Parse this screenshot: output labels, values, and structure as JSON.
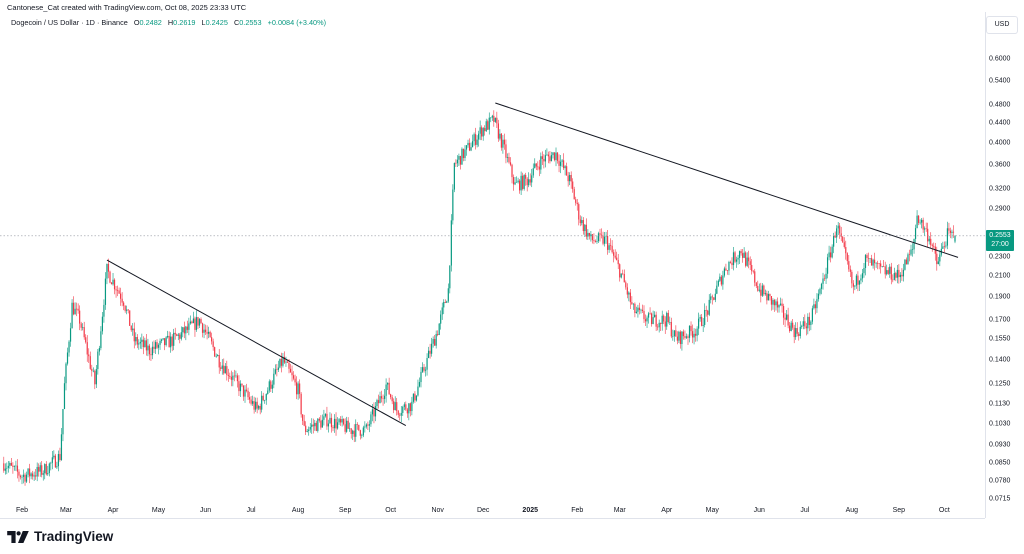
{
  "header": {
    "attribution": "Cantonese_Cat created with TradingView.com, Oct 08, 2025 23:33 UTC"
  },
  "legend": {
    "symbol": "Dogecoin / US Dollar · 1D · Binance",
    "open_label": "O",
    "open": "0.2482",
    "high_label": "H",
    "high": "0.2619",
    "low_label": "L",
    "low": "0.2425",
    "close_label": "C",
    "close": "0.2553",
    "change": "+0.0084 (+3.40%)"
  },
  "price_axis": {
    "currency": "USD",
    "last_price": "0.2553",
    "countdown": "27:00"
  },
  "branding": {
    "logo_text": "TradingView"
  },
  "colors": {
    "up": "#089981",
    "down": "#f23645",
    "trendline": "#131722",
    "price_line": "#9598a1"
  },
  "chart_data": {
    "type": "candlestick",
    "title": "Dogecoin / US Dollar · 1D · Binance",
    "y_scale": "log",
    "ylim": [
      0.068,
      0.66
    ],
    "xlim": [
      "2024-01-19",
      "2025-10-28"
    ],
    "grid": false,
    "y_ticks": [
      "0.6000",
      "0.5400",
      "0.4800",
      "0.4400",
      "0.4000",
      "0.3600",
      "0.3200",
      "0.2900",
      "0.2300",
      "0.2100",
      "0.1900",
      "0.1700",
      "0.1550",
      "0.1400",
      "0.1250",
      "0.1130",
      "0.1030",
      "0.0930",
      "0.0850",
      "0.0780",
      "0.0715"
    ],
    "x_ticks": [
      {
        "label": "Feb",
        "date": "2024-02-01"
      },
      {
        "label": "Mar",
        "date": "2024-03-01"
      },
      {
        "label": "Apr",
        "date": "2024-04-01"
      },
      {
        "label": "May",
        "date": "2024-05-01"
      },
      {
        "label": "Jun",
        "date": "2024-06-01"
      },
      {
        "label": "Jul",
        "date": "2024-07-01"
      },
      {
        "label": "Aug",
        "date": "2024-08-01"
      },
      {
        "label": "Sep",
        "date": "2024-09-01"
      },
      {
        "label": "Oct",
        "date": "2024-10-01"
      },
      {
        "label": "Nov",
        "date": "2024-11-01"
      },
      {
        "label": "Dec",
        "date": "2024-12-01"
      },
      {
        "label": "2025",
        "date": "2025-01-01",
        "year": true
      },
      {
        "label": "Feb",
        "date": "2025-02-01"
      },
      {
        "label": "Mar",
        "date": "2025-03-01"
      },
      {
        "label": "Apr",
        "date": "2025-04-01"
      },
      {
        "label": "May",
        "date": "2025-05-01"
      },
      {
        "label": "Jun",
        "date": "2025-06-01"
      },
      {
        "label": "Jul",
        "date": "2025-07-01"
      },
      {
        "label": "Aug",
        "date": "2025-08-01"
      },
      {
        "label": "Sep",
        "date": "2025-09-01"
      },
      {
        "label": "Oct",
        "date": "2025-10-01"
      }
    ],
    "approx_closes": [
      [
        "2024-01-20",
        0.085
      ],
      [
        "2024-02-01",
        0.08
      ],
      [
        "2024-02-15",
        0.082
      ],
      [
        "2024-02-26",
        0.088
      ],
      [
        "2024-02-29",
        0.124
      ],
      [
        "2024-03-05",
        0.182
      ],
      [
        "2024-03-10",
        0.17
      ],
      [
        "2024-03-20",
        0.125
      ],
      [
        "2024-03-28",
        0.216
      ],
      [
        "2024-04-08",
        0.187
      ],
      [
        "2024-04-15",
        0.154
      ],
      [
        "2024-04-25",
        0.147
      ],
      [
        "2024-05-10",
        0.154
      ],
      [
        "2024-05-20",
        0.162
      ],
      [
        "2024-05-28",
        0.17
      ],
      [
        "2024-06-10",
        0.14
      ],
      [
        "2024-06-20",
        0.127
      ],
      [
        "2024-07-05",
        0.11
      ],
      [
        "2024-07-15",
        0.127
      ],
      [
        "2024-07-22",
        0.14
      ],
      [
        "2024-08-01",
        0.121
      ],
      [
        "2024-08-05",
        0.1
      ],
      [
        "2024-08-20",
        0.105
      ],
      [
        "2024-09-05",
        0.1
      ],
      [
        "2024-09-15",
        0.1
      ],
      [
        "2024-09-28",
        0.124
      ],
      [
        "2024-10-05",
        0.11
      ],
      [
        "2024-10-15",
        0.113
      ],
      [
        "2024-10-25",
        0.14
      ],
      [
        "2024-11-01",
        0.162
      ],
      [
        "2024-11-08",
        0.197
      ],
      [
        "2024-11-12",
        0.36
      ],
      [
        "2024-11-20",
        0.386
      ],
      [
        "2024-11-30",
        0.426
      ],
      [
        "2024-12-08",
        0.447
      ],
      [
        "2024-12-15",
        0.386
      ],
      [
        "2024-12-22",
        0.326
      ],
      [
        "2024-12-30",
        0.334
      ],
      [
        "2025-01-08",
        0.368
      ],
      [
        "2025-01-18",
        0.38
      ],
      [
        "2025-01-27",
        0.334
      ],
      [
        "2025-02-03",
        0.276
      ],
      [
        "2025-02-10",
        0.25
      ],
      [
        "2025-02-20",
        0.25
      ],
      [
        "2025-03-01",
        0.216
      ],
      [
        "2025-03-10",
        0.178
      ],
      [
        "2025-03-20",
        0.17
      ],
      [
        "2025-04-01",
        0.17
      ],
      [
        "2025-04-07",
        0.155
      ],
      [
        "2025-04-20",
        0.162
      ],
      [
        "2025-04-28",
        0.178
      ],
      [
        "2025-05-10",
        0.22
      ],
      [
        "2025-05-20",
        0.238
      ],
      [
        "2025-06-01",
        0.197
      ],
      [
        "2025-06-15",
        0.178
      ],
      [
        "2025-06-25",
        0.16
      ],
      [
        "2025-07-05",
        0.17
      ],
      [
        "2025-07-12",
        0.2
      ],
      [
        "2025-07-20",
        0.25
      ],
      [
        "2025-07-22",
        0.27
      ],
      [
        "2025-08-02",
        0.197
      ],
      [
        "2025-08-10",
        0.227
      ],
      [
        "2025-08-20",
        0.216
      ],
      [
        "2025-09-01",
        0.21
      ],
      [
        "2025-09-10",
        0.238
      ],
      [
        "2025-09-13",
        0.282
      ],
      [
        "2025-09-22",
        0.25
      ],
      [
        "2025-09-26",
        0.222
      ],
      [
        "2025-10-03",
        0.256
      ],
      [
        "2025-10-08",
        0.2553
      ]
    ],
    "trendlines": [
      {
        "from": [
          "2024-03-28",
          0.227
        ],
        "to": [
          "2024-10-11",
          0.102
        ]
      },
      {
        "from": [
          "2024-12-09",
          0.485
        ],
        "to": [
          "2025-10-10",
          0.23
        ]
      }
    ],
    "last_price": 0.2553
  }
}
